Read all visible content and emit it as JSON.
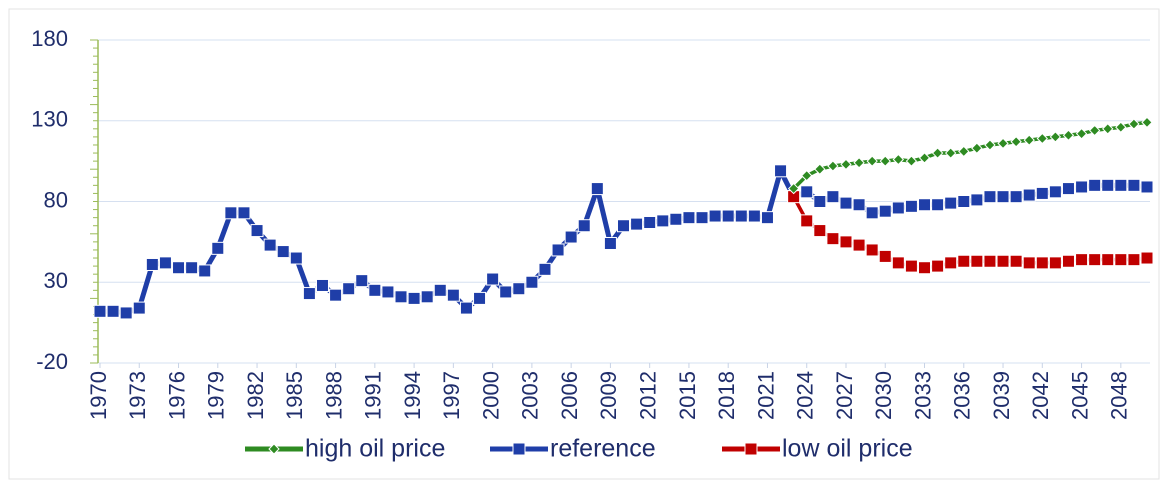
{
  "chart_data": {
    "type": "line",
    "x": [
      1970,
      1971,
      1972,
      1973,
      1974,
      1975,
      1976,
      1977,
      1978,
      1979,
      1980,
      1981,
      1982,
      1983,
      1984,
      1985,
      1986,
      1987,
      1988,
      1989,
      1990,
      1991,
      1992,
      1993,
      1994,
      1995,
      1996,
      1997,
      1998,
      1999,
      2000,
      2001,
      2002,
      2003,
      2004,
      2005,
      2006,
      2007,
      2008,
      2009,
      2010,
      2011,
      2012,
      2013,
      2014,
      2015,
      2016,
      2017,
      2018,
      2019,
      2020,
      2021,
      2022,
      2023,
      2024,
      2025,
      2026,
      2027,
      2028,
      2029,
      2030,
      2031,
      2032,
      2033,
      2034,
      2035,
      2036,
      2037,
      2038,
      2039,
      2040,
      2041,
      2042,
      2043,
      2044,
      2045,
      2046,
      2047,
      2048,
      2049,
      2050
    ],
    "series": [
      {
        "name": "high oil price",
        "color": "#2e8b22",
        "marker": "diamond",
        "values": [
          null,
          null,
          null,
          null,
          null,
          null,
          null,
          null,
          null,
          null,
          null,
          null,
          null,
          null,
          null,
          null,
          null,
          null,
          null,
          null,
          null,
          null,
          null,
          null,
          null,
          null,
          null,
          null,
          null,
          null,
          null,
          null,
          null,
          null,
          null,
          null,
          null,
          null,
          null,
          null,
          null,
          null,
          null,
          null,
          null,
          null,
          null,
          null,
          null,
          null,
          null,
          null,
          null,
          88,
          96,
          100,
          102,
          103,
          104,
          105,
          105,
          106,
          105,
          107,
          110,
          110,
          111,
          113,
          115,
          116,
          117,
          118,
          119,
          120,
          121,
          122,
          124,
          125,
          126,
          128,
          129
        ]
      },
      {
        "name": "reference",
        "color": "#1f3ea8",
        "marker": "square",
        "values": [
          12,
          12,
          11,
          14,
          41,
          42,
          39,
          39,
          37,
          51,
          73,
          73,
          62,
          53,
          49,
          45,
          23,
          28,
          22,
          26,
          31,
          25,
          24,
          21,
          20,
          21,
          25,
          22,
          14,
          20,
          32,
          24,
          26,
          30,
          38,
          50,
          58,
          65,
          88,
          54,
          65,
          66,
          67,
          68,
          69,
          70,
          70,
          71,
          71,
          71,
          71,
          70,
          99,
          83,
          86,
          80,
          83,
          79,
          78,
          73,
          74,
          76,
          77,
          78,
          78,
          79,
          80,
          81,
          83,
          83,
          83,
          84,
          85,
          86,
          88,
          89,
          90,
          90,
          90,
          90,
          89
        ]
      },
      {
        "name": "low oil price",
        "color": "#c00000",
        "marker": "square",
        "values": [
          null,
          null,
          null,
          null,
          null,
          null,
          null,
          null,
          null,
          null,
          null,
          null,
          null,
          null,
          null,
          null,
          null,
          null,
          null,
          null,
          null,
          null,
          null,
          null,
          null,
          null,
          null,
          null,
          null,
          null,
          null,
          null,
          null,
          null,
          null,
          null,
          null,
          null,
          null,
          null,
          null,
          null,
          null,
          null,
          null,
          null,
          null,
          null,
          null,
          null,
          null,
          null,
          null,
          83,
          68,
          62,
          57,
          55,
          53,
          50,
          46,
          42,
          40,
          39,
          40,
          42,
          43,
          43,
          43,
          43,
          43,
          42,
          42,
          42,
          43,
          44,
          44,
          44,
          44,
          44,
          45
        ]
      }
    ],
    "xlim": [
      1970,
      2050
    ],
    "xticks": [
      1970,
      1973,
      1976,
      1979,
      1982,
      1985,
      1988,
      1991,
      1994,
      1997,
      2000,
      2003,
      2006,
      2009,
      2012,
      2015,
      2018,
      2021,
      2024,
      2027,
      2030,
      2033,
      2036,
      2039,
      2042,
      2045,
      2048
    ],
    "ylim": [
      -20,
      180
    ],
    "yticks": [
      -20,
      30,
      80,
      130,
      180
    ],
    "grid": true,
    "legend": "bottom"
  }
}
